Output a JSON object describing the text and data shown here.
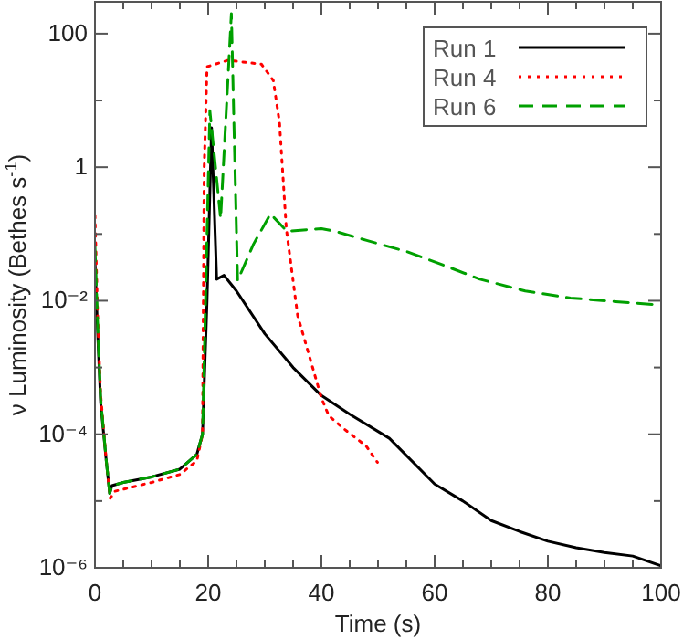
{
  "chart_data": {
    "type": "line",
    "xlabel": "Time (s)",
    "ylabel": "ν Luminosity (Bethes s$^{-1}$)",
    "log": "y",
    "legend": "top right",
    "grid": false,
    "xlim": [
      0,
      100
    ],
    "xticks": [
      0,
      {
        "value": 5,
        "label": null
      },
      {
        "value": 10,
        "label": null
      },
      {
        "value": 15,
        "label": null
      },
      20,
      {
        "value": 25,
        "label": null
      },
      {
        "value": 30,
        "label": null
      },
      {
        "value": 35,
        "label": null
      },
      40,
      {
        "value": 45,
        "label": null
      },
      {
        "value": 50,
        "label": null
      },
      {
        "value": 55,
        "label": null
      },
      60,
      {
        "value": 65,
        "label": null
      },
      {
        "value": 70,
        "label": null
      },
      {
        "value": 75,
        "label": null
      },
      80,
      {
        "value": 85,
        "label": null
      },
      {
        "value": 90,
        "label": null
      },
      {
        "value": 95,
        "label": null
      },
      100
    ],
    "ylim": [
      1e-06,
      300
    ],
    "yticks": [
      {
        "value": 1e-06,
        "label": "10⁻⁶"
      },
      {
        "value": 1e-05,
        "label": null
      },
      {
        "value": 0.0001,
        "label": "10⁻⁴"
      },
      {
        "value": 0.001,
        "label": null
      },
      {
        "value": 0.01,
        "label": "10⁻²"
      },
      {
        "value": 0.1,
        "label": null
      },
      1,
      {
        "value": 10,
        "label": null
      },
      100
    ],
    "series": [
      {
        "name": "Run 1",
        "color": "#000000",
        "line_style": "solid",
        "x": [
          0,
          0.5,
          1,
          2,
          2.6,
          3,
          5,
          10,
          15,
          18,
          19,
          19.8,
          20.6,
          21.5,
          22.8,
          25,
          30,
          35,
          40,
          45,
          52,
          60,
          65,
          70,
          75,
          80,
          85,
          90,
          95,
          100
        ],
        "values": [
          0.04,
          0.003,
          0.0003,
          4e-05,
          1.3e-05,
          1.7e-05,
          1.9e-05,
          2.3e-05,
          3e-05,
          5e-05,
          0.0001,
          0.01,
          3.9,
          0.021,
          0.024,
          0.014,
          0.0032,
          0.001,
          0.00038,
          0.0002,
          8.7e-05,
          1.8e-05,
          1e-05,
          5.1e-06,
          3.5e-06,
          2.5e-06,
          2e-06,
          1.7e-06,
          1.5e-06,
          1.07e-06
        ]
      },
      {
        "name": "Run 4",
        "color": "#ff0000",
        "line_style": "dotted",
        "x": [
          0,
          0.5,
          1,
          2,
          2.7,
          3.5,
          5,
          10,
          15,
          18,
          19,
          19.3,
          19.8,
          23.5,
          29.4,
          31.5,
          32.6,
          33.8,
          35.8,
          40,
          41.3,
          44,
          46.7,
          48,
          49.9
        ],
        "values": [
          0.19,
          0.005,
          0.0004,
          4e-05,
          1.1e-05,
          1.4e-05,
          1.5e-05,
          1.9e-05,
          2.5e-05,
          4e-05,
          0.0001,
          1,
          32,
          40,
          35,
          20,
          4.7,
          0.12,
          0.006,
          0.00035,
          0.00019,
          0.00012,
          8e-05,
          6.5e-05,
          3.8e-05
        ]
      },
      {
        "name": "Run 6",
        "color": "#00a000",
        "line_style": "dashed",
        "x": [
          0,
          0.5,
          1,
          2,
          2.6,
          3,
          5,
          10,
          15,
          18,
          19,
          19.8,
          20.3,
          22.2,
          24.1,
          25.2,
          28,
          31,
          33.9,
          40,
          42.4,
          48,
          55.2,
          62,
          68,
          76,
          84,
          92,
          99.4
        ],
        "values": [
          0.065,
          0.004,
          0.00035,
          4e-05,
          1.3e-05,
          1.7e-05,
          1.9e-05,
          2.3e-05,
          3e-05,
          5e-05,
          0.0001,
          0.1,
          7,
          0.17,
          200,
          0.02,
          0.07,
          0.2,
          0.11,
          0.12,
          0.11,
          0.08,
          0.054,
          0.033,
          0.021,
          0.014,
          0.011,
          0.0097,
          0.0087
        ]
      }
    ]
  }
}
